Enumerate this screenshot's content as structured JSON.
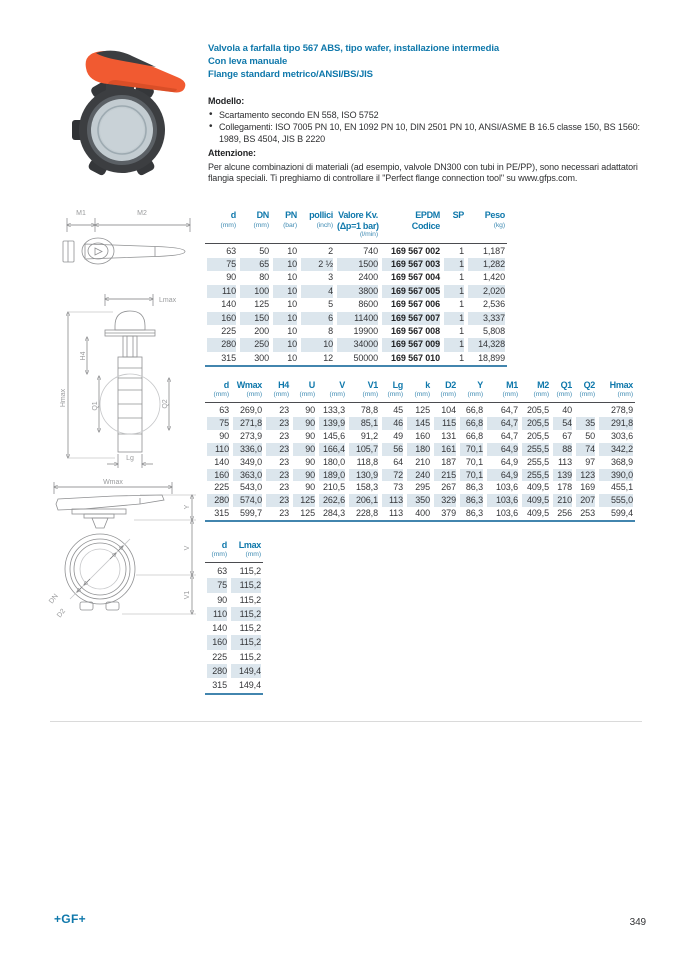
{
  "colors": {
    "accent": "#0f78ab",
    "accent_soft": "#3f8bb3",
    "row_shade": "#dce6ed",
    "handle_orange": "#f15a31",
    "body_dark": "#3c3e41",
    "disc_gray": "#c3ccd1"
  },
  "header": {
    "title_line1": "Valvola a farfalla tipo 567 ABS, tipo wafer, installazione intermedia",
    "title_line2": "Con leva manuale",
    "title_line3": "Flange standard metrico/ANSI/BS/JIS"
  },
  "modello": {
    "label": "Modello:",
    "bullet1": "Scartamento secondo EN 558, ISO 5752",
    "bullet2": "Collegamenti: ISO 7005 PN 10, EN 1092 PN 10, DIN 2501 PN 10, ANSI/ASME B 16.5 classe 150, BS 1560: 1989, BS 4504, JIS B 2220"
  },
  "attenzione": {
    "label": "Attenzione:",
    "text": "Per alcune combinazioni di materiali (ad esempio, valvole DN300 con tubi in PE/PP), sono necessari adattatori flangia speciali. Ti preghiamo di controllare il \"Perfect flange connection tool\" su www.gfps.com."
  },
  "drawings": {
    "top": {
      "m1": "M1",
      "m2": "M2"
    },
    "side": {
      "lmax": "Lmax",
      "hmax": "Hmax",
      "h4": "H4",
      "q1": "Q1",
      "q2": "Q2",
      "lg": "Lg"
    },
    "front": {
      "wmax": "Wmax",
      "y": "Y",
      "v": "V",
      "v1": "V1",
      "dn": "DN",
      "d2": "D2"
    }
  },
  "tables": {
    "kv": {
      "columns": [
        {
          "label": "d",
          "unit": "(mm)"
        },
        {
          "label": "DN",
          "unit": "(mm)"
        },
        {
          "label": "PN",
          "unit": "(bar)"
        },
        {
          "label": "pollici",
          "unit": "(inch)"
        },
        {
          "label": "Valore Kv.",
          "label2": "(Δp=1 bar)",
          "unit": "(l/min)"
        },
        {
          "label": "EPDM",
          "label2": "Codice"
        },
        {
          "label": "SP"
        },
        {
          "label": "Peso",
          "unit": "(kg)"
        }
      ],
      "bold_cols": [
        5
      ],
      "rows": [
        [
          "63",
          "50",
          "10",
          "2",
          "740",
          "169 567 002",
          "1",
          "1,187"
        ],
        [
          "75",
          "65",
          "10",
          "2 ½",
          "1500",
          "169 567 003",
          "1",
          "1,282"
        ],
        [
          "90",
          "80",
          "10",
          "3",
          "2400",
          "169 567 004",
          "1",
          "1,420"
        ],
        [
          "110",
          "100",
          "10",
          "4",
          "3800",
          "169 567 005",
          "1",
          "2,020"
        ],
        [
          "140",
          "125",
          "10",
          "5",
          "8600",
          "169 567 006",
          "1",
          "2,536"
        ],
        [
          "160",
          "150",
          "10",
          "6",
          "11400",
          "169 567 007",
          "1",
          "3,337"
        ],
        [
          "225",
          "200",
          "10",
          "8",
          "19900",
          "169 567 008",
          "1",
          "5,808"
        ],
        [
          "280",
          "250",
          "10",
          "10",
          "34000",
          "169 567 009",
          "1",
          "14,328"
        ],
        [
          "315",
          "300",
          "10",
          "12",
          "50000",
          "169 567 010",
          "1",
          "18,899"
        ]
      ]
    },
    "dim": {
      "columns": [
        {
          "label": "d",
          "unit": "(mm)"
        },
        {
          "label": "Wmax",
          "unit": "(mm)"
        },
        {
          "label": "H4",
          "unit": "(mm)"
        },
        {
          "label": "U",
          "unit": "(mm)"
        },
        {
          "label": "V",
          "unit": "(mm)"
        },
        {
          "label": "V1",
          "unit": "(mm)"
        },
        {
          "label": "Lg",
          "unit": "(mm)"
        },
        {
          "label": "k",
          "unit": "(mm)"
        },
        {
          "label": "D2",
          "unit": "(mm)"
        },
        {
          "label": "Y",
          "unit": "(mm)"
        },
        {
          "label": "M1",
          "unit": "(mm)"
        },
        {
          "label": "M2",
          "unit": "(mm)"
        },
        {
          "label": "Q1",
          "unit": "(mm)"
        },
        {
          "label": "Q2",
          "unit": "(mm)"
        },
        {
          "label": "Hmax",
          "unit": "(mm)"
        }
      ],
      "rows": [
        [
          "63",
          "269,0",
          "23",
          "90",
          "133,3",
          "78,8",
          "45",
          "125",
          "104",
          "66,8",
          "64,7",
          "205,5",
          "40",
          "",
          "278,9"
        ],
        [
          "75",
          "271,8",
          "23",
          "90",
          "139,9",
          "85,1",
          "46",
          "145",
          "115",
          "66,8",
          "64,7",
          "205,5",
          "54",
          "35",
          "291,8"
        ],
        [
          "90",
          "273,9",
          "23",
          "90",
          "145,6",
          "91,2",
          "49",
          "160",
          "131",
          "66,8",
          "64,7",
          "205,5",
          "67",
          "50",
          "303,6"
        ],
        [
          "110",
          "336,0",
          "23",
          "90",
          "166,4",
          "105,7",
          "56",
          "180",
          "161",
          "70,1",
          "64,9",
          "255,5",
          "88",
          "74",
          "342,2"
        ],
        [
          "140",
          "349,0",
          "23",
          "90",
          "180,0",
          "118,8",
          "64",
          "210",
          "187",
          "70,1",
          "64,9",
          "255,5",
          "113",
          "97",
          "368,9"
        ],
        [
          "160",
          "363,0",
          "23",
          "90",
          "189,0",
          "130,9",
          "72",
          "240",
          "215",
          "70,1",
          "64,9",
          "255,5",
          "139",
          "123",
          "390,0"
        ],
        [
          "225",
          "543,0",
          "23",
          "90",
          "210,5",
          "158,3",
          "73",
          "295",
          "267",
          "86,3",
          "103,6",
          "409,5",
          "178",
          "169",
          "455,1"
        ],
        [
          "280",
          "574,0",
          "23",
          "125",
          "262,6",
          "206,1",
          "113",
          "350",
          "329",
          "86,3",
          "103,6",
          "409,5",
          "210",
          "207",
          "555,0"
        ],
        [
          "315",
          "599,7",
          "23",
          "125",
          "284,3",
          "228,8",
          "113",
          "400",
          "379",
          "86,3",
          "103,6",
          "409,5",
          "256",
          "253",
          "599,4"
        ]
      ]
    },
    "lmax": {
      "columns": [
        {
          "label": "d",
          "unit": "(mm)"
        },
        {
          "label": "Lmax",
          "unit": "(mm)"
        }
      ],
      "rows": [
        [
          "63",
          "115,2"
        ],
        [
          "75",
          "115,2"
        ],
        [
          "90",
          "115,2"
        ],
        [
          "110",
          "115,2"
        ],
        [
          "140",
          "115,2"
        ],
        [
          "160",
          "115,2"
        ],
        [
          "225",
          "115,2"
        ],
        [
          "280",
          "149,4"
        ],
        [
          "315",
          "149,4"
        ]
      ]
    }
  },
  "footer": {
    "logo": "+GF+",
    "page_number": "349"
  }
}
